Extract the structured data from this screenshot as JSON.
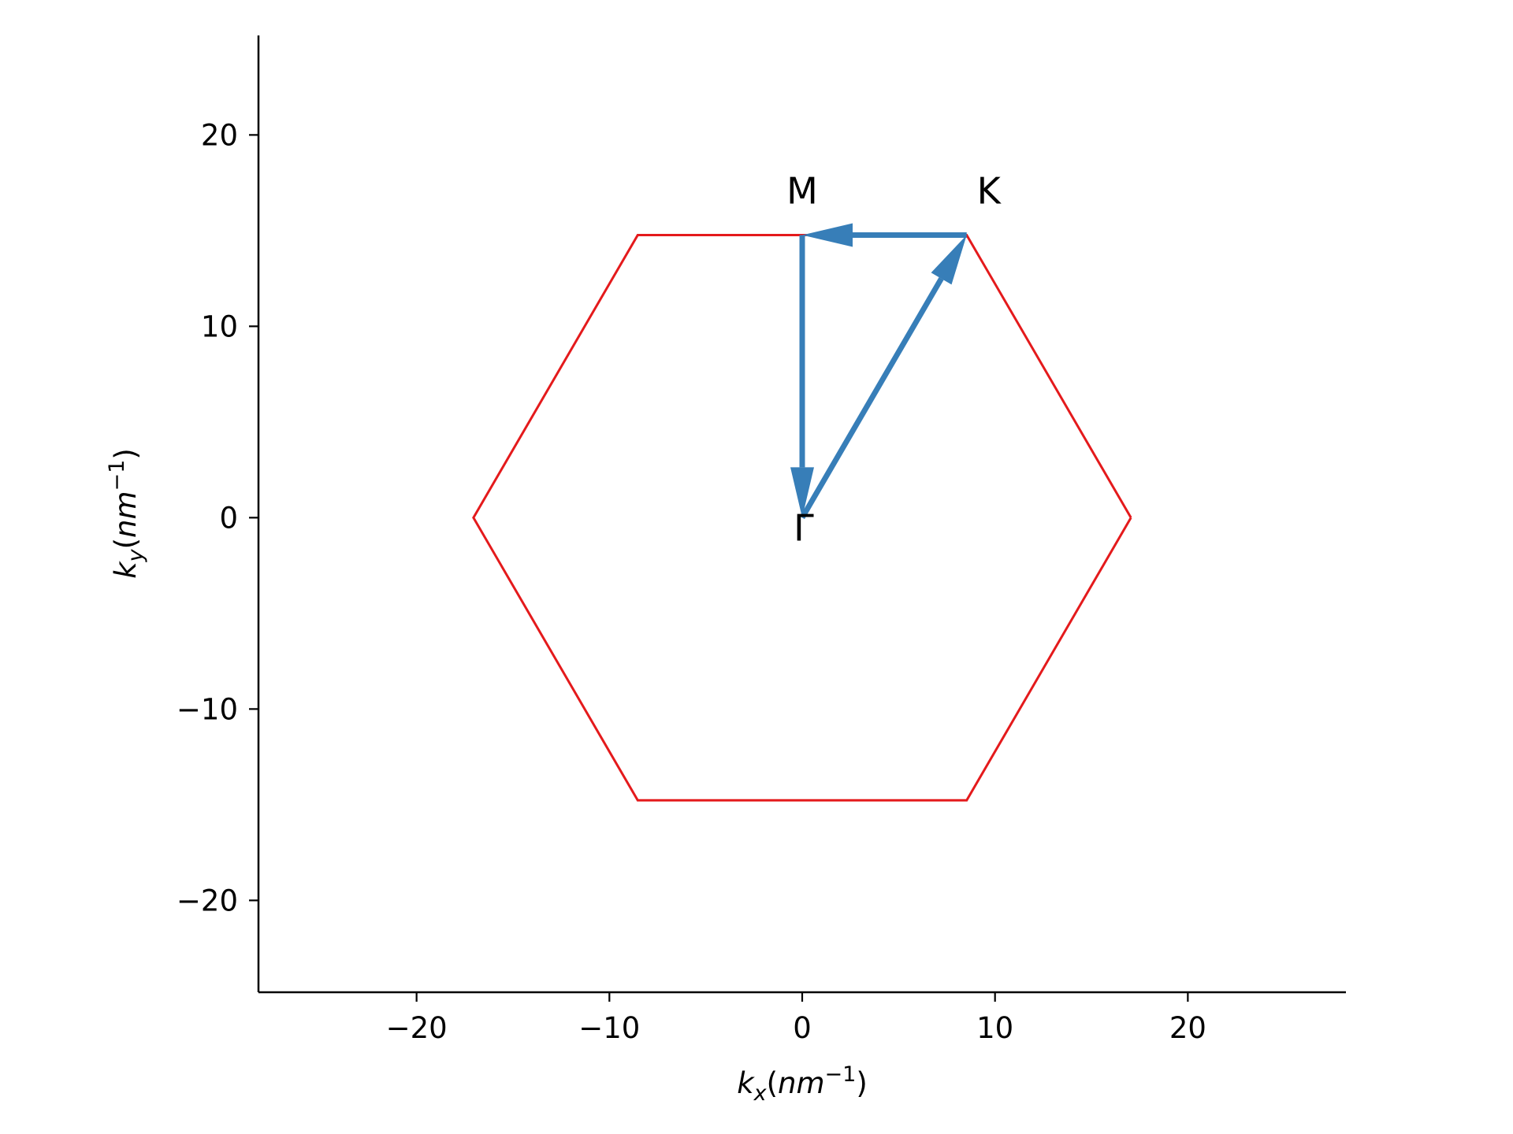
{
  "chart_data": {
    "type": "line",
    "title": "",
    "xlabel": {
      "base": "k",
      "sub": "x",
      "unit_open": "(",
      "unit": "nm",
      "sup": "−1",
      "unit_close": ")"
    },
    "ylabel": {
      "base": "k",
      "sub": "y",
      "unit_open": "(",
      "unit": "nm",
      "sup": "−1",
      "unit_close": ")"
    },
    "xlim": [
      -28.2,
      28.2
    ],
    "ylim": [
      -24.8,
      25.2
    ],
    "xticks": [
      -20,
      -10,
      0,
      10,
      20
    ],
    "yticks": [
      -20,
      -10,
      0,
      10,
      20
    ],
    "xtick_labels": [
      "−20",
      "−10",
      "0",
      "10",
      "20"
    ],
    "ytick_labels": [
      "−20",
      "−10",
      "0",
      "10",
      "20"
    ],
    "grid": false,
    "hexagon": {
      "color": "#e41a1c",
      "x": [
        17.05,
        8.53,
        -8.53,
        -17.05,
        -8.53,
        8.53,
        17.05
      ],
      "y": [
        0,
        14.77,
        14.77,
        0,
        -14.77,
        -14.77,
        0
      ]
    },
    "path_color": "#377eb8",
    "arrows": [
      {
        "from": [
          0,
          0
        ],
        "to": [
          8.53,
          14.77
        ]
      },
      {
        "from": [
          8.53,
          14.77
        ],
        "to": [
          0,
          14.77
        ]
      },
      {
        "from": [
          0,
          14.77
        ],
        "to": [
          0,
          0
        ]
      }
    ],
    "points": [
      {
        "label": "Γ",
        "x": 0,
        "y": 0
      },
      {
        "label": "M",
        "x": 0,
        "y": 14.77
      },
      {
        "label": "K",
        "x": 8.53,
        "y": 14.77
      }
    ]
  }
}
